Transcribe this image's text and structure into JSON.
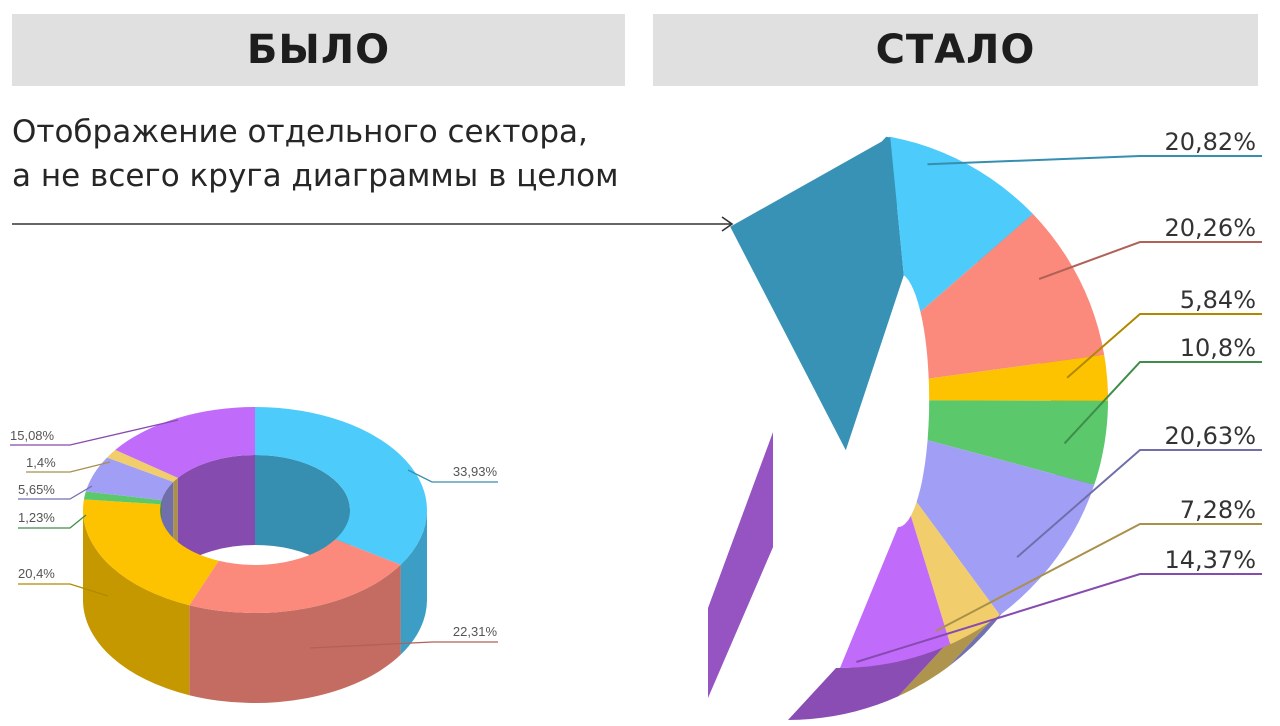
{
  "header": {
    "before_label": "БЫЛО",
    "after_label": "СТАЛО"
  },
  "subtitle": {
    "line1": "Отображение отдельного сектора,",
    "line2": "а не всего круга диаграммы в целом"
  },
  "chart_data": [
    {
      "type": "pie",
      "variant": "3d-donut",
      "panel": "БЫЛО",
      "slices": [
        {
          "label": "33,93%",
          "value": 33.93,
          "color": "#4dcbfb"
        },
        {
          "label": "22,31%",
          "value": 22.31,
          "color": "#fb8a7d"
        },
        {
          "label": "20,4%",
          "value": 20.4,
          "color": "#fdc300"
        },
        {
          "label": "1,23%",
          "value": 1.23,
          "color": "#5bc86b"
        },
        {
          "label": "5,65%",
          "value": 5.65,
          "color": "#a09ff5"
        },
        {
          "label": "1,4%",
          "value": 1.4,
          "color": "#f1ce6b"
        },
        {
          "label": "15,08%",
          "value": 15.08,
          "color": "#c06bf9"
        }
      ]
    },
    {
      "type": "pie",
      "variant": "3d-sector",
      "panel": "СТАЛО",
      "slices": [
        {
          "label": "20,82%",
          "value": 20.82,
          "color": "#4dcbfb"
        },
        {
          "label": "20,26%",
          "value": 20.26,
          "color": "#fb8a7d"
        },
        {
          "label": "5,84%",
          "value": 5.84,
          "color": "#fdc300"
        },
        {
          "label": "10,8%",
          "value": 10.8,
          "color": "#5bc86b"
        },
        {
          "label": "20,63%",
          "value": 20.63,
          "color": "#a09ff5"
        },
        {
          "label": "7,28%",
          "value": 7.28,
          "color": "#f1ce6b"
        },
        {
          "label": "14,37%",
          "value": 14.37,
          "color": "#c06bf9"
        }
      ]
    }
  ]
}
